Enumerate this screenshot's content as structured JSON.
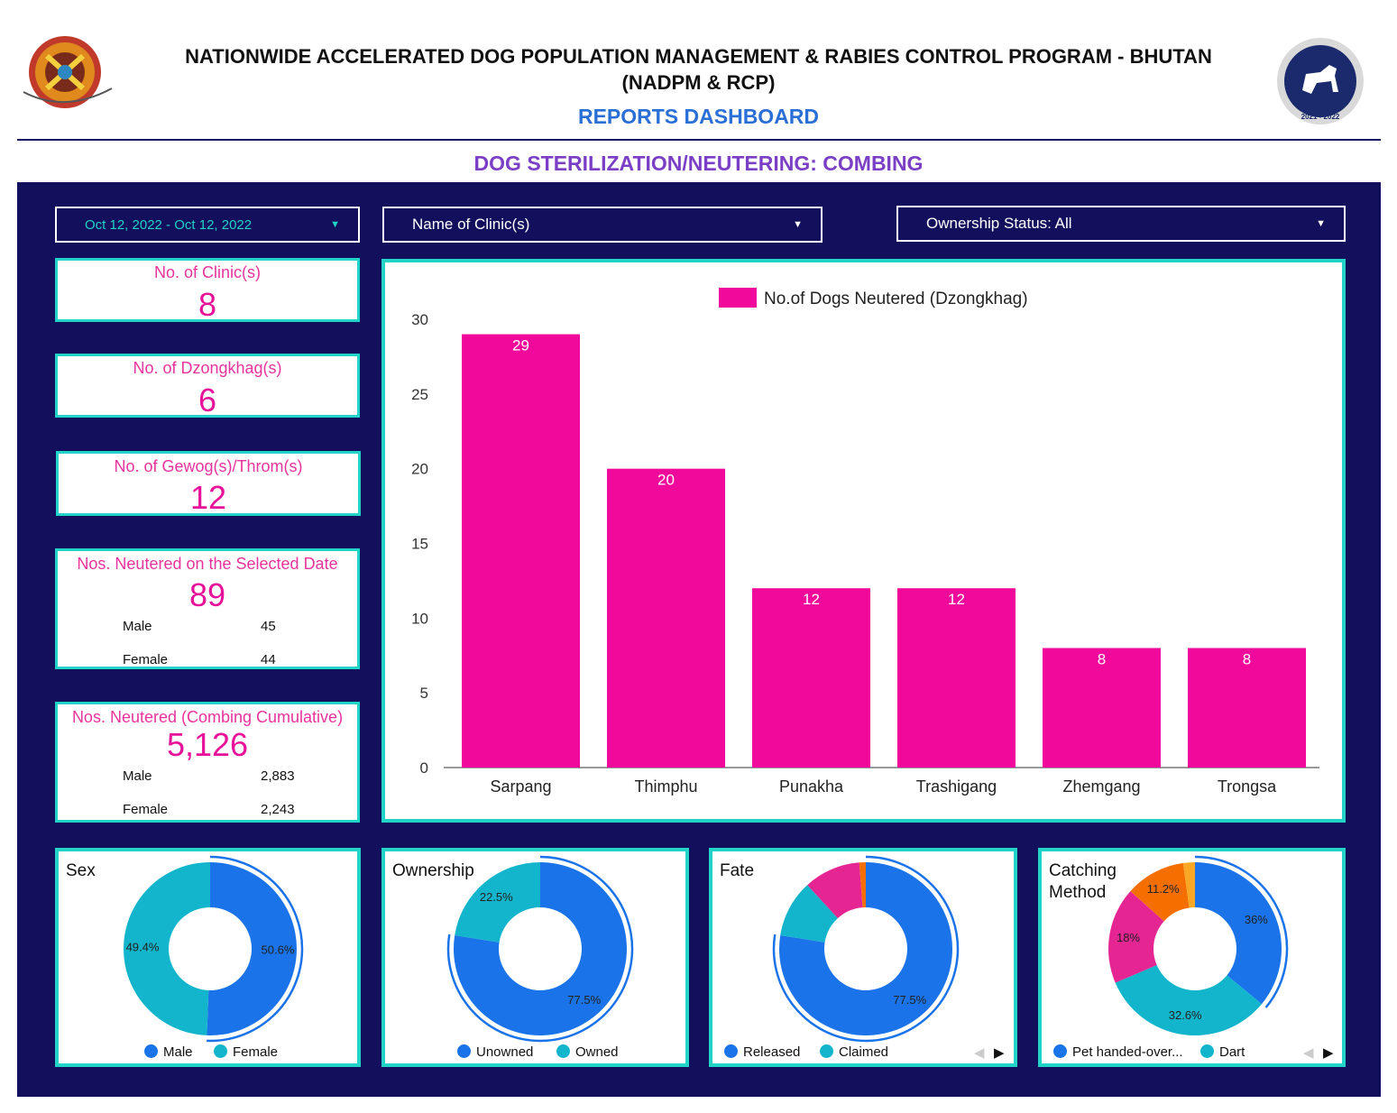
{
  "header": {
    "title_line1": "NATIONWIDE ACCELERATED DOG POPULATION MANAGEMENT & RABIES CONTROL PROGRAM - BHUTAN",
    "title_line2": "(NADPM & RCP)",
    "subtitle": "REPORTS DASHBOARD",
    "section_title": "DOG STERILIZATION/NEUTERING: COMBING",
    "logo_right_years": "2021 - 2022"
  },
  "filters": {
    "date_range": "Oct 12, 2022 - Oct 12, 2022",
    "clinic": "Name of Clinic(s)",
    "ownership": "Ownership Status: All"
  },
  "kpis": {
    "clinics": {
      "label": "No. of Clinic(s)",
      "value": "8"
    },
    "dzongkhags": {
      "label": "No. of Dzongkhag(s)",
      "value": "6"
    },
    "gewogs": {
      "label": "No. of Gewog(s)/Throm(s)",
      "value": "12"
    },
    "selected_date": {
      "label": "Nos. Neutered on the Selected Date",
      "value": "89",
      "male_label": "Male",
      "male_value": "45",
      "female_label": "Female",
      "female_value": "44"
    },
    "cumulative": {
      "label": "Nos. Neutered (Combing Cumulative)",
      "value": "5,126",
      "male_label": "Male",
      "male_value": "2,883",
      "female_label": "Female",
      "female_value": "2,243"
    }
  },
  "chart_data": [
    {
      "type": "bar",
      "categories": [
        "Sarpang",
        "Thimphu",
        "Punakha",
        "Trashigang",
        "Zhemgang",
        "Trongsa"
      ],
      "series": [
        {
          "name": "No.of Dogs Neutered (Dzongkhag)",
          "values": [
            29,
            20,
            12,
            12,
            8,
            8
          ]
        }
      ],
      "yticks": [
        0,
        5,
        10,
        15,
        20,
        25,
        30
      ],
      "ylim": [
        0,
        30
      ],
      "legend": "top",
      "color": "#f0099b"
    },
    {
      "type": "pie",
      "title": "Sex",
      "slices": [
        {
          "name": "Male",
          "value": 50.6,
          "color": "#1a73e8",
          "label": "50.6%"
        },
        {
          "name": "Female",
          "value": 49.4,
          "color": "#12b5cb",
          "label": "49.4%"
        }
      ],
      "legend": [
        "Male",
        "Female"
      ]
    },
    {
      "type": "pie",
      "title": "Ownership",
      "slices": [
        {
          "name": "Unowned",
          "value": 77.5,
          "color": "#1a73e8",
          "label": "77.5%"
        },
        {
          "name": "Owned",
          "value": 22.5,
          "color": "#12b5cb",
          "label": "22.5%"
        }
      ],
      "legend": [
        "Unowned",
        "Owned"
      ]
    },
    {
      "type": "pie",
      "title": "Fate",
      "slices": [
        {
          "name": "Released",
          "value": 77.5,
          "color": "#1a73e8",
          "label": "77.5%"
        },
        {
          "name": "Claimed",
          "value": 10.7,
          "color": "#12b5cb",
          "label": ""
        },
        {
          "name": "",
          "value": 10.6,
          "color": "#e52592",
          "label": ""
        },
        {
          "name": "",
          "value": 1.2,
          "color": "#f56e00",
          "label": ""
        }
      ],
      "legend": [
        "Released",
        "Claimed"
      ]
    },
    {
      "type": "pie",
      "title": "Catching Method",
      "slices": [
        {
          "name": "Pet handed-over...",
          "value": 36,
          "color": "#1a73e8",
          "label": "36%"
        },
        {
          "name": "Dart",
          "value": 32.6,
          "color": "#12b5cb",
          "label": "32.6%"
        },
        {
          "name": "",
          "value": 18,
          "color": "#e52592",
          "label": "18%"
        },
        {
          "name": "",
          "value": 11.2,
          "color": "#f56e00",
          "label": "11.2%"
        },
        {
          "name": "",
          "value": 2.2,
          "color": "#f9a825",
          "label": ""
        }
      ],
      "legend": [
        "Pet handed-over...",
        "Dart"
      ]
    }
  ],
  "colors": {
    "panel": "#120f5c",
    "border": "#21d4c7",
    "kpi": "#e8129a",
    "bar": "#f0099b"
  }
}
